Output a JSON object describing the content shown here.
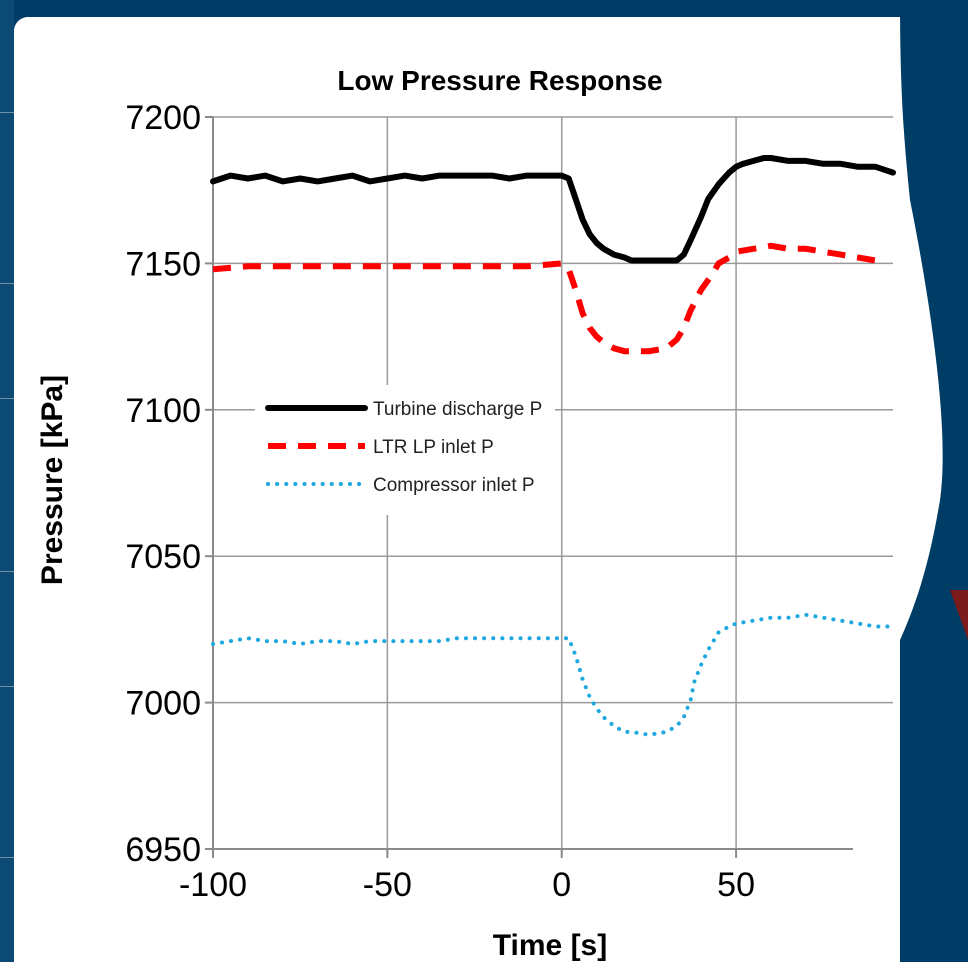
{
  "chart_data": {
    "type": "line",
    "title": "Low Pressure Response",
    "xlabel": "Time [s]",
    "ylabel": "Pressure [kPa]",
    "xlim": [
      -100,
      95
    ],
    "ylim": [
      6950,
      7200
    ],
    "x_ticks": [
      "-100",
      "-50",
      "0",
      "50"
    ],
    "y_ticks": [
      "7200",
      "7150",
      "7100",
      "7050",
      "7000",
      "6950"
    ],
    "grid": true,
    "legend_position": "center-left",
    "series": [
      {
        "name": "Turbine discharge P",
        "color": "#000000",
        "style": "solid",
        "x": [
          -100,
          -95,
          -90,
          -85,
          -80,
          -75,
          -70,
          -65,
          -60,
          -55,
          -50,
          -45,
          -40,
          -35,
          -30,
          -25,
          -20,
          -15,
          -10,
          -5,
          0,
          2,
          4,
          6,
          8,
          10,
          12,
          15,
          18,
          20,
          25,
          30,
          33,
          35,
          37,
          40,
          42,
          45,
          48,
          50,
          52,
          55,
          58,
          60,
          65,
          70,
          75,
          80,
          85,
          90,
          95
        ],
        "y": [
          7178,
          7180,
          7179,
          7180,
          7178,
          7179,
          7178,
          7179,
          7180,
          7178,
          7179,
          7180,
          7179,
          7180,
          7180,
          7180,
          7180,
          7179,
          7180,
          7180,
          7180,
          7179,
          7172,
          7165,
          7160,
          7157,
          7155,
          7153,
          7152,
          7151,
          7151,
          7151,
          7151,
          7153,
          7158,
          7166,
          7172,
          7177,
          7181,
          7183,
          7184,
          7185,
          7186,
          7186,
          7185,
          7185,
          7184,
          7184,
          7183,
          7183,
          7181
        ]
      },
      {
        "name": "LTR LP inlet P",
        "color": "#ff0000",
        "style": "dashed",
        "x": [
          -100,
          -90,
          -80,
          -70,
          -60,
          -50,
          -40,
          -30,
          -20,
          -10,
          0,
          2,
          4,
          6,
          8,
          10,
          12,
          15,
          18,
          20,
          25,
          30,
          33,
          35,
          37,
          40,
          43,
          45,
          48,
          50,
          55,
          60,
          65,
          70,
          75,
          80,
          85,
          90
        ],
        "y": [
          7148,
          7149,
          7149,
          7149,
          7149,
          7149,
          7149,
          7149,
          7149,
          7149,
          7150,
          7148,
          7141,
          7133,
          7128,
          7125,
          7123,
          7121,
          7120,
          7120,
          7120,
          7121,
          7124,
          7128,
          7134,
          7141,
          7146,
          7150,
          7152,
          7154,
          7155,
          7156,
          7155,
          7155,
          7154,
          7153,
          7152,
          7151
        ]
      },
      {
        "name": "Compressor inlet P",
        "color": "#1fa8e0",
        "style": "dotted",
        "x": [
          -100,
          -95,
          -90,
          -85,
          -80,
          -75,
          -70,
          -65,
          -60,
          -55,
          -50,
          -45,
          -40,
          -35,
          -30,
          -25,
          -20,
          -15,
          -10,
          -5,
          0,
          2,
          4,
          6,
          8,
          10,
          12,
          15,
          18,
          20,
          25,
          30,
          33,
          35,
          37,
          38,
          40,
          42,
          45,
          48,
          50,
          55,
          60,
          65,
          70,
          75,
          80,
          85,
          90,
          95
        ],
        "y": [
          7020,
          7021,
          7022,
          7021,
          7021,
          7020,
          7021,
          7021,
          7020,
          7021,
          7021,
          7021,
          7021,
          7021,
          7022,
          7022,
          7022,
          7022,
          7022,
          7022,
          7022,
          7022,
          7016,
          7008,
          7002,
          6998,
          6995,
          6992,
          6990,
          6990,
          6989,
          6990,
          6992,
          6995,
          7001,
          7007,
          7013,
          7018,
          7024,
          7026,
          7027,
          7028,
          7029,
          7029,
          7030,
          7029,
          7028,
          7027,
          7026,
          7026
        ]
      }
    ]
  }
}
